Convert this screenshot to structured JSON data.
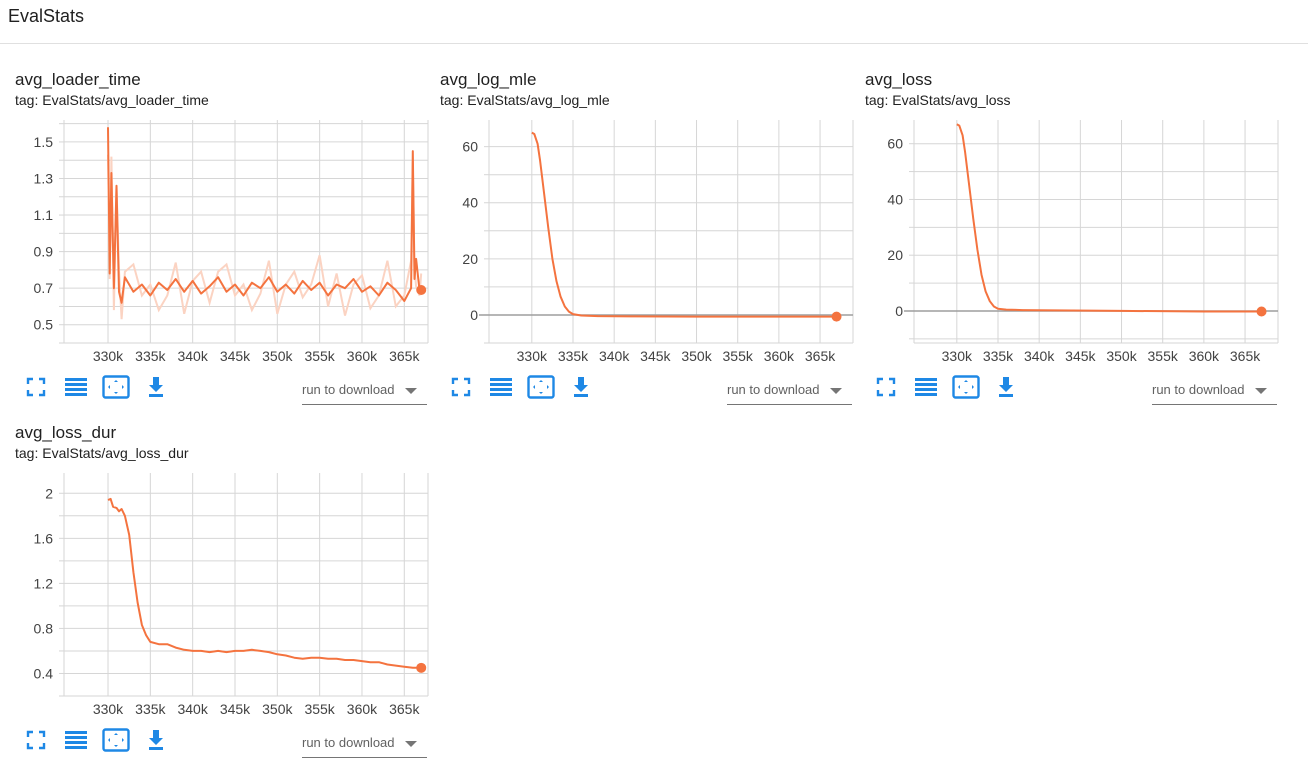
{
  "section": {
    "title": "EvalStats"
  },
  "colors": {
    "series": "#f4733f",
    "raw": "#fbd3c2",
    "grid": "#d6d6d6",
    "zero_line": "#9e9e9e",
    "icon": "#1e88e5"
  },
  "toolbar": {
    "icons": [
      "fullscreen-icon",
      "list-icon",
      "fit-domain-icon",
      "download-icon"
    ],
    "run_placeholder": "run to download"
  },
  "chart_data": [
    {
      "type": "line",
      "title": "avg_loader_time",
      "tag": "tag: EvalStats/avg_loader_time",
      "xlabel": "",
      "ylabel": "",
      "x_ticks": [
        330000,
        335000,
        340000,
        345000,
        350000,
        355000,
        360000,
        365000
      ],
      "x_tick_labels": [
        "330k",
        "335k",
        "340k",
        "345k",
        "350k",
        "355k",
        "360k",
        "365k"
      ],
      "xlim": [
        324800,
        367800
      ],
      "ylim": [
        0.4,
        1.62
      ],
      "y_ticks": [
        0.5,
        0.7,
        0.9,
        1.1,
        1.3,
        1.5
      ],
      "y_tick_labels": [
        "0.5",
        "0.7",
        "0.9",
        "1.1",
        "1.3",
        "1.5"
      ],
      "grid": true,
      "raw_series": true,
      "series": [
        {
          "x": [
            330000,
            330200,
            330400,
            330700,
            331000,
            331300,
            331600,
            332000,
            333000,
            334000,
            335000,
            336000,
            337000,
            338000,
            339000,
            340000,
            341000,
            342000,
            343000,
            344000,
            345000,
            346000,
            347000,
            348000,
            349000,
            350000,
            351000,
            352000,
            353000,
            354000,
            355000,
            356000,
            357000,
            358000,
            359000,
            360000,
            361000,
            362000,
            363000,
            364000,
            365000,
            365800,
            366000,
            366200,
            366400,
            366800,
            367000
          ],
          "y": [
            1.58,
            0.78,
            1.33,
            0.7,
            1.26,
            0.68,
            0.62,
            0.76,
            0.68,
            0.72,
            0.66,
            0.73,
            0.69,
            0.75,
            0.68,
            0.74,
            0.67,
            0.71,
            0.76,
            0.68,
            0.72,
            0.66,
            0.73,
            0.7,
            0.76,
            0.68,
            0.72,
            0.67,
            0.74,
            0.69,
            0.73,
            0.66,
            0.72,
            0.7,
            0.75,
            0.68,
            0.71,
            0.66,
            0.73,
            0.69,
            0.63,
            0.7,
            1.45,
            0.75,
            0.86,
            0.69,
            0.69
          ]
        }
      ]
    },
    {
      "type": "line",
      "title": "avg_log_mle",
      "tag": "tag: EvalStats/avg_log_mle",
      "xlabel": "",
      "ylabel": "",
      "x_ticks": [
        330000,
        335000,
        340000,
        345000,
        350000,
        355000,
        360000,
        365000
      ],
      "x_tick_labels": [
        "330k",
        "335k",
        "340k",
        "345k",
        "350k",
        "355k",
        "360k",
        "365k"
      ],
      "xlim": [
        324800,
        369000
      ],
      "ylim": [
        -10,
        69.5
      ],
      "y_ticks": [
        0,
        20,
        40,
        60
      ],
      "y_tick_labels": [
        "0",
        "20",
        "40",
        "60"
      ],
      "grid": true,
      "zero_line": true,
      "series": [
        {
          "x": [
            330000,
            330300,
            330700,
            331000,
            331500,
            332000,
            332500,
            333000,
            333500,
            334000,
            334500,
            335000,
            336000,
            338000,
            342000,
            350000,
            360000,
            367000
          ],
          "y": [
            65,
            64.5,
            61,
            55,
            43,
            31,
            20,
            12,
            6.5,
            3,
            1.2,
            0.3,
            -0.2,
            -0.4,
            -0.5,
            -0.6,
            -0.6,
            -0.6
          ]
        }
      ]
    },
    {
      "type": "line",
      "title": "avg_loss",
      "tag": "tag: EvalStats/avg_loss",
      "xlabel": "",
      "ylabel": "",
      "x_ticks": [
        330000,
        335000,
        340000,
        345000,
        350000,
        355000,
        360000,
        365000
      ],
      "x_tick_labels": [
        "330k",
        "335k",
        "340k",
        "345k",
        "350k",
        "355k",
        "360k",
        "365k"
      ],
      "xlim": [
        324800,
        369000
      ],
      "ylim": [
        -11.5,
        68.5
      ],
      "y_ticks": [
        0,
        20,
        40,
        60
      ],
      "y_tick_labels": [
        "0",
        "20",
        "40",
        "60"
      ],
      "grid": true,
      "zero_line": true,
      "series": [
        {
          "x": [
            330000,
            330300,
            330700,
            331000,
            331500,
            332000,
            332500,
            333000,
            333500,
            334000,
            334500,
            335000,
            336000,
            338000,
            342000,
            350000,
            360000,
            367000
          ],
          "y": [
            67,
            66.5,
            63,
            57,
            45,
            33,
            22,
            13,
            7,
            3.5,
            1.6,
            0.8,
            0.5,
            0.3,
            0.2,
            0,
            -0.2,
            -0.2
          ]
        }
      ]
    },
    {
      "type": "line",
      "title": "avg_loss_dur",
      "tag": "tag: EvalStats/avg_loss_dur",
      "xlabel": "",
      "ylabel": "",
      "x_ticks": [
        330000,
        335000,
        340000,
        345000,
        350000,
        355000,
        360000,
        365000
      ],
      "x_tick_labels": [
        "330k",
        "335k",
        "340k",
        "345k",
        "350k",
        "355k",
        "360k",
        "365k"
      ],
      "xlim": [
        324800,
        367800
      ],
      "ylim": [
        0.2,
        2.18
      ],
      "y_ticks": [
        0.4,
        0.8,
        1.2,
        1.6,
        2
      ],
      "y_tick_labels": [
        "0.4",
        "0.8",
        "1.2",
        "1.6",
        "2"
      ],
      "grid": true,
      "series": [
        {
          "x": [
            330000,
            330300,
            330600,
            331000,
            331300,
            331600,
            332000,
            332500,
            333000,
            333500,
            334000,
            334500,
            335000,
            336000,
            337000,
            338000,
            339000,
            340000,
            341000,
            342000,
            343000,
            344000,
            345000,
            346000,
            347000,
            348000,
            349000,
            350000,
            351000,
            352000,
            353000,
            354000,
            355000,
            356000,
            357000,
            358000,
            359000,
            360000,
            361000,
            362000,
            363000,
            364000,
            365000,
            366000,
            367000
          ],
          "y": [
            1.94,
            1.95,
            1.88,
            1.87,
            1.84,
            1.86,
            1.8,
            1.63,
            1.3,
            1.03,
            0.83,
            0.74,
            0.68,
            0.66,
            0.66,
            0.63,
            0.61,
            0.6,
            0.6,
            0.59,
            0.6,
            0.59,
            0.6,
            0.6,
            0.61,
            0.6,
            0.59,
            0.57,
            0.56,
            0.54,
            0.53,
            0.54,
            0.54,
            0.53,
            0.53,
            0.52,
            0.52,
            0.51,
            0.5,
            0.5,
            0.48,
            0.47,
            0.46,
            0.45,
            0.45
          ]
        }
      ]
    }
  ]
}
